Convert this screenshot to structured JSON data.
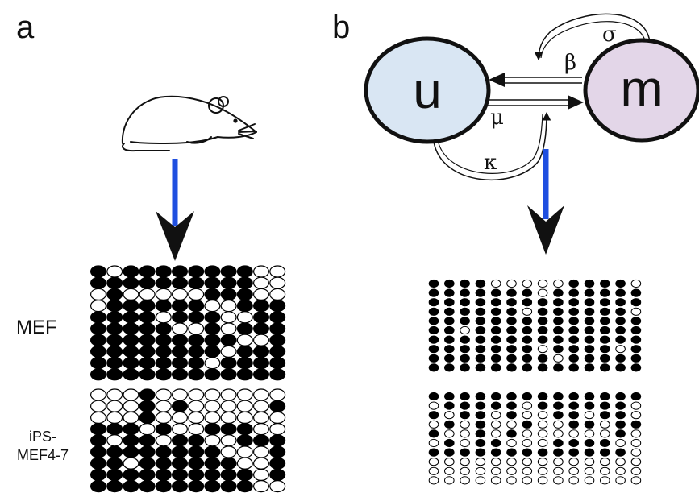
{
  "panels": {
    "a": {
      "letter": "a",
      "labels": {
        "mef": "MEF",
        "ips_line1": "iPS-",
        "ips_line2": "MEF4-7"
      },
      "arrow_color": "#1f4fe0",
      "icon": "mouse-icon",
      "grids": {
        "mef": {
          "rows": [
            "010000000011",
            "000000000011",
            "101111100011",
            "100000011000",
            "000010001100",
            "000001101000",
            "000000000110",
            "000000001000",
            "000000010000",
            "000000000000"
          ]
        },
        "ips": {
          "rows": [
            "111011111111",
            "111010111110",
            "111011111111",
            "000101100011",
            "010010011000",
            "000000001110",
            "001000000110",
            "000000000010",
            "000000000011"
          ]
        }
      }
    },
    "b": {
      "letter": "b",
      "arrow_color": "#1f4fe0",
      "nodes": {
        "u": {
          "label": "u",
          "fill": "#d9e6f3"
        },
        "m": {
          "label": "m",
          "fill": "#e3d6e8"
        }
      },
      "rates": {
        "beta": "β",
        "mu": "μ",
        "sigma": "σ",
        "kappa": "κ"
      },
      "grids": {
        "top": {
          "rows": [
            "00001111100001",
            "00000001000000",
            "00000000000000",
            "00000010000001",
            "00000000000000",
            "00100000000000",
            "00000000000000",
            "00000001000010",
            "00000000100000",
            "00000000000000"
          ]
        },
        "bottom": {
          "rows": [
            "00000000000000",
            "10000010000001",
            "01001011001001",
            "10101101100100",
            "01101011111101",
            "10100111000011",
            "00000000000001",
            "11111111111111",
            "11111111111111",
            "11111111111111"
          ]
        }
      }
    }
  }
}
